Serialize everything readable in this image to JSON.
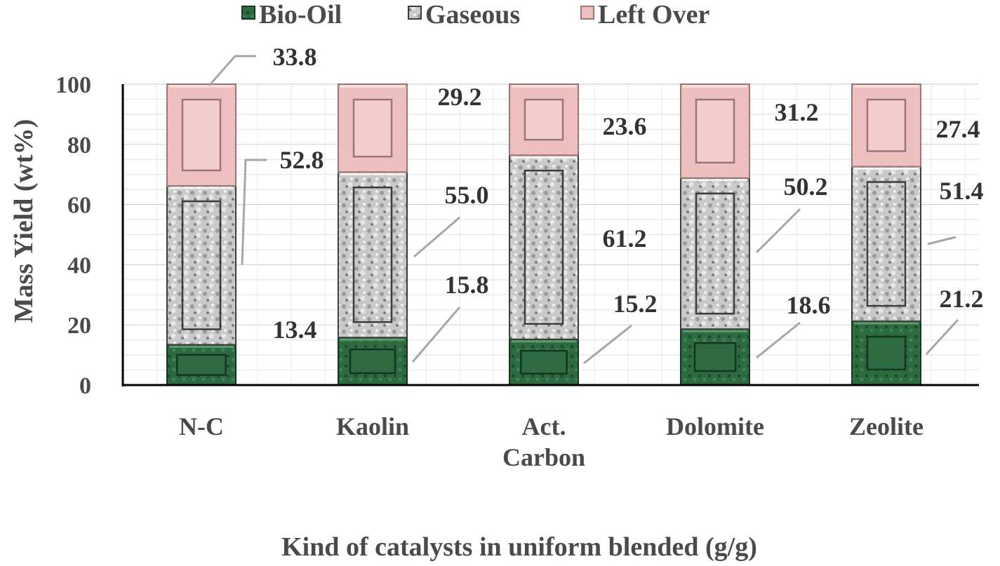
{
  "chart_data": {
    "type": "bar",
    "stacked": true,
    "title": "",
    "xlabel": "Kind of catalysts in uniform blended (g/g)",
    "ylabel": "Mass Yield (wt%)",
    "ylim": [
      0,
      100
    ],
    "yticks": [
      "0",
      "20",
      "40",
      "60",
      "80",
      "100"
    ],
    "grid": true,
    "legend_position": "top",
    "categories": [
      [
        "N-C"
      ],
      [
        "Kaolin"
      ],
      [
        "Act.",
        "Carbon"
      ],
      [
        "Dolomite"
      ],
      [
        "Zeolite"
      ]
    ],
    "series": [
      {
        "name": "Bio-Oil",
        "color": "#2c5e3a",
        "values": [
          13.4,
          15.8,
          15.2,
          18.6,
          21.2
        ],
        "labels": [
          "13.4",
          "15.8",
          "15.2",
          "18.6",
          "21.2"
        ]
      },
      {
        "name": "Gaseous",
        "color": "#bdbdbd",
        "values": [
          52.8,
          55.0,
          61.2,
          50.2,
          51.4
        ],
        "labels": [
          "52.8",
          "55.0",
          "61.2",
          "50.2",
          "51.4"
        ]
      },
      {
        "name": "Left Over",
        "color": "#efc3c3",
        "values": [
          33.8,
          29.2,
          23.6,
          31.2,
          27.4
        ],
        "labels": [
          "33.8",
          "29.2",
          "23.6",
          "31.2",
          "27.4"
        ]
      }
    ]
  }
}
